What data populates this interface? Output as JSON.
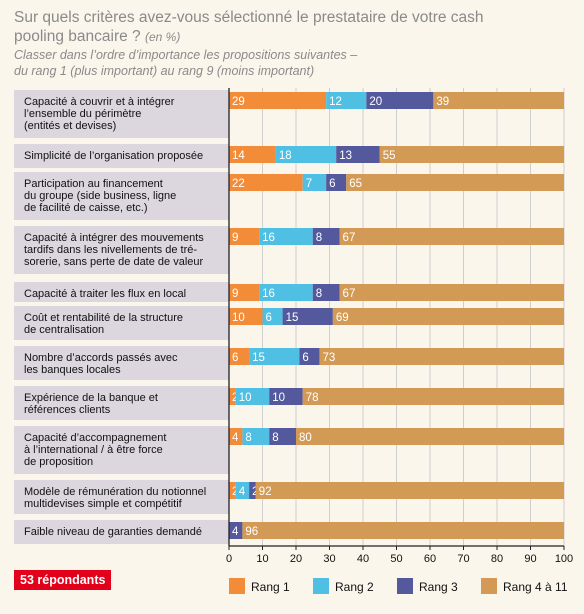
{
  "title": "Sur quels critères avez-vous sélectionné le prestataire de votre cash pooling bancaire ?",
  "title_unit": "(en %)",
  "subtitle_line1": "Classer dans l’ordre d’importance les propositions suivantes –",
  "subtitle_line2": "du rang 1 (plus important) au rang 9 (moins important)",
  "respondents": "53 répondants",
  "chart_data": {
    "type": "bar",
    "orientation": "horizontal",
    "stacked": true,
    "xlim": [
      0,
      100
    ],
    "ticks": [
      0,
      10,
      20,
      30,
      40,
      50,
      60,
      70,
      80,
      90,
      100
    ],
    "grid": true,
    "legend_position": "bottom",
    "categories": [
      [
        "Capacité à couvrir et à intégrer",
        "l’ensemble du périmètre",
        "(entités et devises)"
      ],
      [
        "Simplicité de l’organisation proposée"
      ],
      [
        "Participation au financement",
        "du groupe (side business, ligne",
        "de facilité de caisse, etc.)"
      ],
      [
        "Capacité à intégrer des mouvements",
        "tardifs dans les nivellements de tré-",
        "sorerie, sans perte de date de valeur"
      ],
      [
        "Capacité à traiter les flux en local"
      ],
      [
        "Coût et rentabilité de la structure",
        "de centralisation"
      ],
      [
        "Nombre d’accords passés avec",
        "les banques locales"
      ],
      [
        "Expérience de la banque et",
        "références clients"
      ],
      [
        "Capacité d’accompagnement",
        "à l’international / à être force",
        "de proposition"
      ],
      [
        "Modèle de rémunération du notionnel",
        "multidevises simple et compétitif"
      ],
      [
        "Faible niveau de garanties demandé"
      ]
    ],
    "series": [
      {
        "name": "Rang 1",
        "color": "#f28c38",
        "values": [
          29,
          14,
          22,
          9,
          9,
          10,
          6,
          2,
          4,
          2,
          0
        ]
      },
      {
        "name": "Rang 2",
        "color": "#4fc0e3",
        "values": [
          12,
          18,
          7,
          16,
          16,
          6,
          15,
          10,
          8,
          4,
          0
        ]
      },
      {
        "name": "Rang 3",
        "color": "#54589d",
        "values": [
          20,
          13,
          6,
          8,
          8,
          15,
          6,
          10,
          8,
          2,
          4
        ]
      },
      {
        "name": "Rang 4 à 11",
        "color": "#d39a55",
        "values": [
          39,
          55,
          65,
          67,
          67,
          69,
          73,
          78,
          80,
          92,
          96
        ]
      }
    ]
  }
}
